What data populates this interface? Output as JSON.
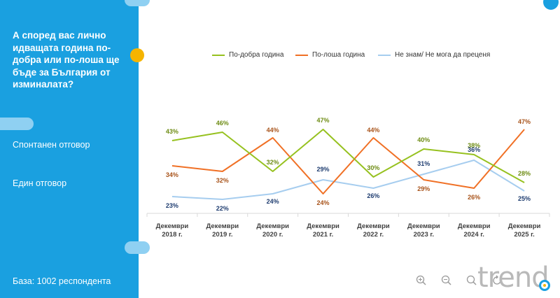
{
  "sidebar": {
    "question": "А според вас лично идващата година по-добра или по-лоша ще бъде за България от изминалата?",
    "note1": "Спонтанен отговор",
    "note2": "Един отговор",
    "base": "База:  1002 респондента"
  },
  "logo": {
    "text": "trend"
  },
  "colors": {
    "better": "#96c11f",
    "worse": "#f07025",
    "dontknow": "#a6cdef",
    "sidebar": "#1aa0e0",
    "accent": "#f5b400"
  },
  "toolbar": {
    "icons": [
      "zoom-in-icon",
      "zoom-out-icon",
      "search-icon",
      "reset-icon"
    ]
  },
  "chart_data": {
    "type": "line",
    "categories": [
      "Декември 2018 г.",
      "Декември 2019 г.",
      "Декември 2020 г.",
      "Декември 2021 г.",
      "Декември 2022 г.",
      "Декември 2023 г.",
      "Декември 2024 г.",
      "Декември 2025 г."
    ],
    "category_lines": [
      [
        "Декември",
        "2018 г."
      ],
      [
        "Декември",
        "2019 г."
      ],
      [
        "Декември",
        "2020 г."
      ],
      [
        "Декември",
        "2021 г."
      ],
      [
        "Декември",
        "2022 г."
      ],
      [
        "Декември",
        "2023 г."
      ],
      [
        "Декември",
        "2024 г."
      ],
      [
        "Декември",
        "2025 г."
      ]
    ],
    "ylim": [
      0,
      60
    ],
    "series": [
      {
        "key": "better",
        "name": "По-добра година",
        "values": [
          43,
          46,
          32,
          47,
          30,
          40,
          38,
          28
        ],
        "labels": [
          "43%",
          "46%",
          "32%",
          "47%",
          "30%",
          "40%",
          "38%",
          "28%"
        ]
      },
      {
        "key": "worse",
        "name": "По-лоша година",
        "values": [
          34,
          32,
          44,
          24,
          44,
          29,
          26,
          47
        ],
        "labels": [
          "34%",
          "32%",
          "44%",
          "24%",
          "44%",
          "29%",
          "26%",
          "47%"
        ]
      },
      {
        "key": "dontknow",
        "name": "Не знам/ Не мога да преценя",
        "values": [
          23,
          22,
          24,
          29,
          26,
          31,
          36,
          25
        ],
        "labels": [
          "23%",
          "22%",
          "24%",
          "29%",
          "26%",
          "31%",
          "36%",
          "25%"
        ]
      }
    ]
  }
}
